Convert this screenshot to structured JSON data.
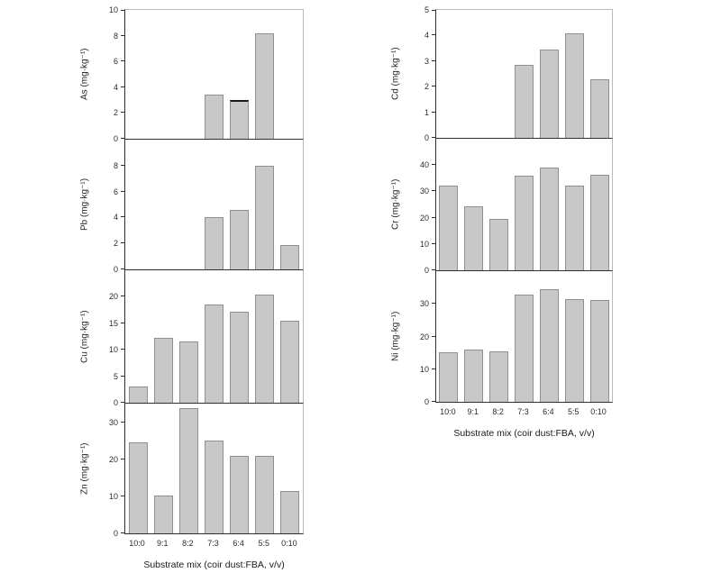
{
  "figure": {
    "x_axis_title": "Substrate mix (coir dust:FBA, v/v)",
    "categories": [
      "10:0",
      "9:1",
      "8:2",
      "7:3",
      "6:4",
      "5:5",
      "0:10"
    ]
  },
  "colors": {
    "background": "#ffffff",
    "bar_fill": "#c8c8c8",
    "bar_border": "#8f8f8f",
    "axis_line": "#2f2f2f",
    "frame_light": "#b9b9b9",
    "text": "#2b2b2b"
  },
  "chart_data": [
    {
      "type": "bar",
      "panel": "As",
      "column": "left",
      "ylabel": "As (mg·kg⁻¹)",
      "ylim": [
        0,
        10
      ],
      "yticks": [
        0,
        2,
        4,
        6,
        8,
        10
      ],
      "grid": false,
      "categories": [
        "10:0",
        "9:1",
        "8:2",
        "7:3",
        "6:4",
        "5:5",
        "0:10"
      ],
      "values": [
        0,
        0,
        0,
        3.45,
        3.0,
        8.2,
        0
      ],
      "dark_top_cap_index": 4
    },
    {
      "type": "bar",
      "panel": "Pb",
      "column": "left",
      "ylabel": "Pb (mg·kg⁻¹)",
      "ylim": [
        0,
        10
      ],
      "yticks": [
        0,
        2,
        4,
        6,
        8
      ],
      "grid": false,
      "categories": [
        "10:0",
        "9:1",
        "8:2",
        "7:3",
        "6:4",
        "5:5",
        "0:10"
      ],
      "values": [
        0,
        0,
        0,
        4.0,
        4.6,
        8.0,
        1.85
      ]
    },
    {
      "type": "bar",
      "panel": "Cu",
      "column": "left",
      "ylabel": "Cu (mg·kg⁻¹)",
      "ylim": [
        0,
        25
      ],
      "yticks": [
        0,
        5,
        10,
        15,
        20
      ],
      "grid": false,
      "categories": [
        "10:0",
        "9:1",
        "8:2",
        "7:3",
        "6:4",
        "5:5",
        "0:10"
      ],
      "values": [
        3.0,
        12.3,
        11.5,
        18.5,
        17.2,
        20.4,
        15.4
      ]
    },
    {
      "type": "bar",
      "panel": "Zn",
      "column": "left",
      "ylabel": "Zn (mg·kg⁻¹)",
      "ylim": [
        0,
        35
      ],
      "yticks": [
        0,
        10,
        20,
        30
      ],
      "grid": false,
      "categories": [
        "10:0",
        "9:1",
        "8:2",
        "7:3",
        "6:4",
        "5:5",
        "0:10"
      ],
      "values": [
        24.5,
        10.3,
        33.8,
        25.0,
        20.8,
        21.0,
        11.5
      ],
      "x_labels": true
    },
    {
      "type": "bar",
      "panel": "Cd",
      "column": "right",
      "ylabel": "Cd (mg·kg⁻¹)",
      "ylim": [
        0,
        5
      ],
      "yticks": [
        0,
        1,
        2,
        3,
        4,
        5
      ],
      "grid": false,
      "categories": [
        "10:0",
        "9:1",
        "8:2",
        "7:3",
        "6:4",
        "5:5",
        "0:10"
      ],
      "values": [
        0,
        0,
        0,
        2.85,
        3.45,
        4.1,
        2.3
      ]
    },
    {
      "type": "bar",
      "panel": "Cr",
      "column": "right",
      "ylabel": "Cr (mg·kg⁻¹)",
      "ylim": [
        0,
        50
      ],
      "yticks": [
        0,
        10,
        20,
        30,
        40
      ],
      "grid": false,
      "categories": [
        "10:0",
        "9:1",
        "8:2",
        "7:3",
        "6:4",
        "5:5",
        "0:10"
      ],
      "values": [
        32.2,
        24.3,
        19.4,
        36.0,
        39.2,
        32.2,
        36.2
      ]
    },
    {
      "type": "bar",
      "panel": "Ni",
      "column": "right",
      "ylabel": "Ni (mg·kg⁻¹)",
      "ylim": [
        0,
        40
      ],
      "yticks": [
        0,
        10,
        20,
        30
      ],
      "grid": false,
      "categories": [
        "10:0",
        "9:1",
        "8:2",
        "7:3",
        "6:4",
        "5:5",
        "0:10"
      ],
      "values": [
        15.2,
        16.0,
        15.4,
        32.8,
        34.4,
        31.5,
        31.2
      ],
      "x_labels": true
    }
  ]
}
